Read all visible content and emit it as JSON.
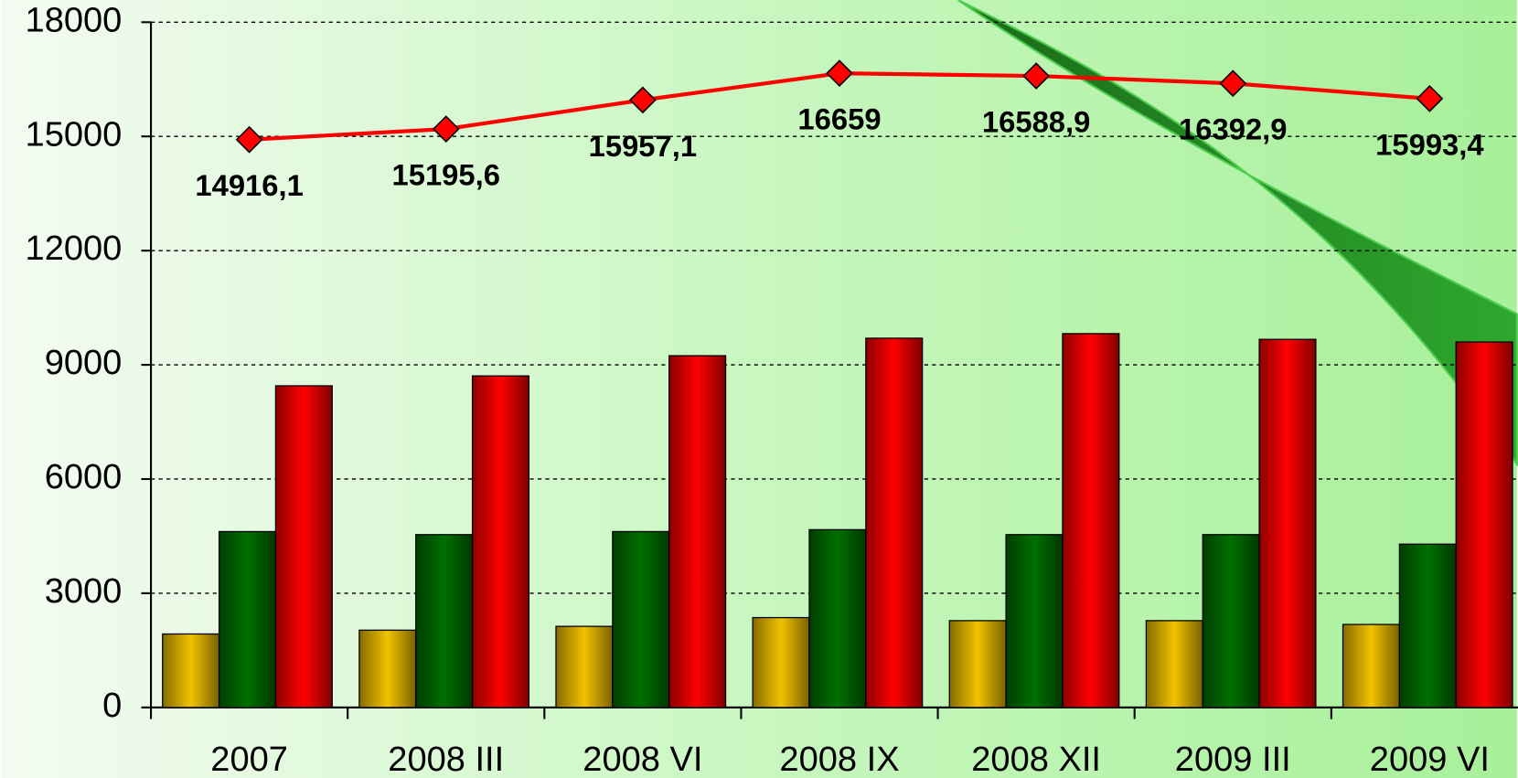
{
  "chart_data": {
    "type": "bar-line",
    "categories": [
      "2007",
      "2008 III",
      "2008 VI",
      "2008 IX",
      "2008 XII",
      "2009 III",
      "2009 VI"
    ],
    "series": [
      {
        "type": "bar",
        "color": "#f2c200",
        "values": [
          1930,
          2030,
          2130,
          2360,
          2280,
          2280,
          2180
        ]
      },
      {
        "type": "bar",
        "color": "#007000",
        "values": [
          4620,
          4540,
          4620,
          4670,
          4540,
          4540,
          4290
        ]
      },
      {
        "type": "bar",
        "color": "#ff0000",
        "values": [
          8450,
          8710,
          9240,
          9700,
          9820,
          9670,
          9600
        ]
      },
      {
        "type": "line",
        "color": "#ff0000",
        "values": [
          14916.1,
          15195.6,
          15957.1,
          16659,
          16588.9,
          16392.9,
          15993.4
        ],
        "value_labels": [
          "14916,1",
          "15195,6",
          "15957,1",
          "16659",
          "16588,9",
          "16392,9",
          "15993,4"
        ]
      }
    ],
    "ylim": [
      0,
      18000
    ],
    "yticks": [
      0,
      3000,
      6000,
      9000,
      12000,
      15000,
      18000
    ],
    "grid": true
  }
}
